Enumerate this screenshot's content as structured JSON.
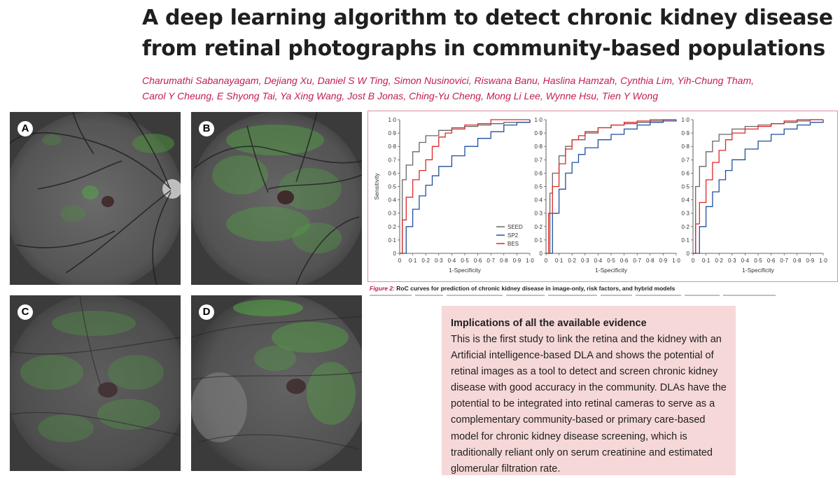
{
  "title_lines": [
    "A deep learning algorithm to detect chronic kidney disease",
    "from retinal photographs in community-based populations"
  ],
  "author_lines": [
    "Charumathi Sabanayagam, Dejiang Xu, Daniel S W Ting, Simon Nusinovici, Riswana Banu, Haslina Hamzah, Cynthia Lim, Yih-Chung Tham,",
    "Carol Y Cheung, E Shyong Tai, Ya Xing Wang, Jost B Jonas, Ching-Yu Cheng, Mong Li Lee, Wynne Hsu, Tien Y Wong"
  ],
  "panels": [
    {
      "label": "A"
    },
    {
      "label": "B"
    },
    {
      "label": "C"
    },
    {
      "label": "D"
    }
  ],
  "figure_caption": {
    "label": "Figure 2:",
    "text": "RoC curves for prediction of chronic kidney disease in image-only, risk factors, and hybrid models"
  },
  "chart_data": [
    {
      "type": "line",
      "xlabel": "1-Specificity",
      "ylabel": "Sensitivity",
      "xlim": [
        0,
        1
      ],
      "ylim": [
        0,
        1
      ],
      "tick_labels": [
        "0",
        "0·1",
        "0·2",
        "0·3",
        "0·4",
        "0·5",
        "0·6",
        "0·7",
        "0·8",
        "0·9",
        "1·0"
      ],
      "legend": {
        "position": "bottom-right",
        "entries": [
          "SEED",
          "SP2",
          "BES"
        ]
      },
      "series": [
        {
          "name": "SEED",
          "color": "#666666",
          "x": [
            0,
            0.02,
            0.05,
            0.1,
            0.15,
            0.2,
            0.3,
            0.4,
            0.5,
            0.6,
            0.7,
            0.8,
            1.0
          ],
          "y": [
            0,
            0.55,
            0.66,
            0.76,
            0.83,
            0.88,
            0.92,
            0.94,
            0.95,
            0.96,
            0.97,
            0.98,
            1.0
          ]
        },
        {
          "name": "SP2",
          "color": "#1f4f9e",
          "x": [
            0,
            0.05,
            0.1,
            0.15,
            0.2,
            0.25,
            0.3,
            0.4,
            0.5,
            0.6,
            0.7,
            0.8,
            0.9,
            1.0
          ],
          "y": [
            0,
            0.2,
            0.33,
            0.43,
            0.51,
            0.58,
            0.65,
            0.73,
            0.8,
            0.86,
            0.91,
            0.96,
            0.98,
            1.0
          ]
        },
        {
          "name": "BES",
          "color": "#e12626",
          "x": [
            0,
            0.02,
            0.05,
            0.1,
            0.15,
            0.2,
            0.25,
            0.3,
            0.35,
            0.4,
            0.5,
            0.6,
            0.7,
            0.8,
            1.0
          ],
          "y": [
            0,
            0.25,
            0.42,
            0.55,
            0.62,
            0.7,
            0.8,
            0.87,
            0.9,
            0.93,
            0.96,
            0.97,
            1.0,
            1.0,
            1.0
          ]
        }
      ]
    },
    {
      "type": "line",
      "xlabel": "1-Specificity",
      "ylabel": "",
      "xlim": [
        0,
        1
      ],
      "ylim": [
        0,
        1
      ],
      "tick_labels": [
        "0",
        "0·1",
        "0·2",
        "0·3",
        "0·4",
        "0·5",
        "0·6",
        "0·7",
        "0·8",
        "0·9",
        "1·0"
      ],
      "series": [
        {
          "name": "SEED",
          "color": "#666666",
          "x": [
            0,
            0.03,
            0.05,
            0.1,
            0.15,
            0.2,
            0.3,
            0.4,
            0.5,
            0.6,
            0.7,
            0.8,
            0.9,
            1.0
          ],
          "y": [
            0,
            0.45,
            0.6,
            0.73,
            0.8,
            0.85,
            0.9,
            0.94,
            0.96,
            0.97,
            0.98,
            0.99,
            1.0,
            1.0
          ]
        },
        {
          "name": "SP2",
          "color": "#1f4f9e",
          "x": [
            0,
            0.05,
            0.1,
            0.15,
            0.2,
            0.25,
            0.3,
            0.4,
            0.5,
            0.6,
            0.7,
            0.8,
            0.9,
            1.0
          ],
          "y": [
            0,
            0.3,
            0.48,
            0.6,
            0.68,
            0.74,
            0.79,
            0.85,
            0.89,
            0.93,
            0.96,
            0.98,
            0.99,
            1.0
          ]
        },
        {
          "name": "BES",
          "color": "#e12626",
          "x": [
            0,
            0.02,
            0.05,
            0.1,
            0.15,
            0.2,
            0.25,
            0.3,
            0.4,
            0.5,
            0.6,
            0.7,
            0.8,
            1.0
          ],
          "y": [
            0,
            0.3,
            0.5,
            0.67,
            0.78,
            0.85,
            0.88,
            0.91,
            0.94,
            0.96,
            0.98,
            0.99,
            1.0,
            1.0
          ]
        }
      ]
    },
    {
      "type": "line",
      "xlabel": "1-Specificity",
      "ylabel": "",
      "xlim": [
        0,
        1
      ],
      "ylim": [
        0,
        1
      ],
      "tick_labels": [
        "0",
        "0·1",
        "0·2",
        "0·3",
        "0·4",
        "0·5",
        "0·6",
        "0·7",
        "0·8",
        "0·9",
        "1·0"
      ],
      "series": [
        {
          "name": "SEED",
          "color": "#666666",
          "x": [
            0,
            0.02,
            0.05,
            0.1,
            0.15,
            0.2,
            0.3,
            0.4,
            0.5,
            0.6,
            0.7,
            0.8,
            0.9,
            1.0
          ],
          "y": [
            0,
            0.5,
            0.65,
            0.76,
            0.84,
            0.89,
            0.93,
            0.95,
            0.96,
            0.97,
            0.98,
            0.99,
            1.0,
            1.0
          ]
        },
        {
          "name": "SP2",
          "color": "#1f4f9e",
          "x": [
            0,
            0.05,
            0.1,
            0.15,
            0.2,
            0.25,
            0.3,
            0.4,
            0.5,
            0.6,
            0.7,
            0.8,
            0.9,
            1.0
          ],
          "y": [
            0,
            0.2,
            0.35,
            0.46,
            0.55,
            0.62,
            0.7,
            0.78,
            0.84,
            0.89,
            0.93,
            0.96,
            0.98,
            1.0
          ]
        },
        {
          "name": "BES",
          "color": "#e12626",
          "x": [
            0,
            0.02,
            0.05,
            0.1,
            0.15,
            0.2,
            0.25,
            0.3,
            0.4,
            0.5,
            0.6,
            0.7,
            0.8,
            1.0
          ],
          "y": [
            0,
            0.22,
            0.38,
            0.55,
            0.68,
            0.77,
            0.85,
            0.9,
            0.93,
            0.95,
            0.97,
            0.99,
            1.0,
            1.0
          ]
        }
      ]
    }
  ],
  "implications": {
    "heading": "Implications of all the available evidence",
    "lines": [
      "This is the first study to link the retina and the kidney with an",
      "Artificial intelligence-based DLA and shows the potential of",
      "retinal images as a tool to detect and screen chronic kidney",
      "disease with good accuracy in the community. DLAs have the",
      "potential to be integrated into retinal cameras to serve as a",
      "complementary community-based or primary care-based",
      "model for chronic kidney disease screening, which is",
      "traditionally reliant only on serum creatinine and estimated",
      "glomerular filtration rate."
    ]
  }
}
